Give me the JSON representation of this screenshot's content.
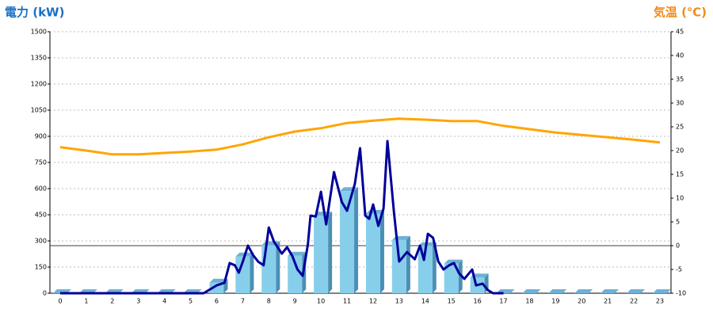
{
  "chart_data": {
    "type": "bar",
    "title_left": "電力 (kW)",
    "title_right": "気温 (℃)",
    "categories": [
      "0",
      "1",
      "2",
      "3",
      "4",
      "5",
      "6",
      "7",
      "8",
      "9",
      "10",
      "11",
      "12",
      "13",
      "14",
      "15",
      "16",
      "17",
      "18",
      "19",
      "20",
      "21",
      "22",
      "23"
    ],
    "ylim": [
      0,
      1500
    ],
    "yticks": [
      0,
      150,
      300,
      450,
      600,
      750,
      900,
      1050,
      1200,
      1350,
      1500
    ],
    "y2lim": [
      -10,
      45
    ],
    "y2ticks": [
      -10,
      -5,
      0,
      5,
      10,
      15,
      20,
      25,
      30,
      35,
      40,
      45
    ],
    "grid": true,
    "series": [
      {
        "type": "bar",
        "color": "#87ceeb",
        "values": [
          0,
          0,
          0,
          0,
          0,
          0,
          60,
          210,
          275,
          215,
          445,
          585,
          455,
          305,
          270,
          170,
          90,
          0,
          0,
          0,
          0,
          0,
          0,
          0
        ]
      },
      {
        "type": "line",
        "color": "#000099",
        "x": [
          0,
          5,
          5.5,
          6,
          6.3,
          6.5,
          6.7,
          6.85,
          7,
          7.2,
          7.4,
          7.6,
          7.8,
          8,
          8.2,
          8.5,
          8.7,
          8.9,
          9.1,
          9.3,
          9.5,
          9.6,
          9.8,
          10,
          10.2,
          10.5,
          10.8,
          11,
          11.3,
          11.5,
          11.7,
          11.85,
          12,
          12.2,
          12.4,
          12.55,
          12.8,
          13,
          13.3,
          13.6,
          13.8,
          13.95,
          14.1,
          14.3,
          14.5,
          14.7,
          14.9,
          15.1,
          15.3,
          15.5,
          15.8,
          15.95,
          16.2,
          16.4,
          16.6,
          17
        ],
        "values": [
          0,
          0,
          0,
          45,
          60,
          173,
          160,
          118,
          180,
          273,
          218,
          180,
          160,
          377,
          295,
          227,
          264,
          214,
          136,
          100,
          282,
          445,
          440,
          582,
          395,
          695,
          523,
          473,
          627,
          832,
          445,
          427,
          509,
          386,
          486,
          873,
          464,
          182,
          236,
          195,
          273,
          191,
          341,
          318,
          182,
          136,
          159,
          173,
          114,
          82,
          136,
          45,
          55,
          18,
          0,
          0
        ]
      },
      {
        "type": "line",
        "axis": "y2",
        "color": "#ffa500",
        "values": [
          20.7,
          20,
          19.2,
          19.2,
          19.5,
          19.8,
          20.2,
          21.3,
          22.8,
          24,
          24.7,
          25.8,
          26.3,
          26.7,
          26.5,
          26.2,
          26.2,
          25.2,
          24.5,
          23.8,
          23.3,
          22.8,
          22.3,
          21.7
        ]
      }
    ]
  }
}
